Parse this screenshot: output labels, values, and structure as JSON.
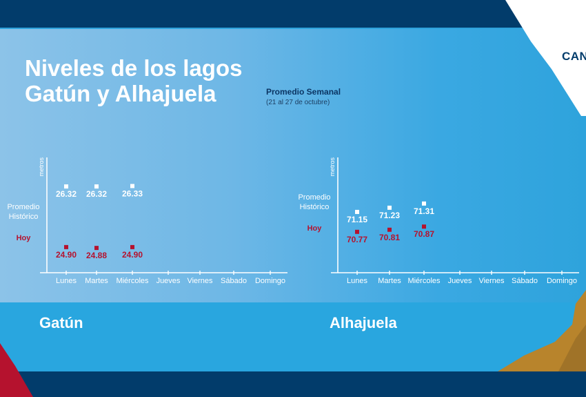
{
  "header": {
    "title_line1": "Niveles de los lagos",
    "title_line2": "Gatún y Alhajuela",
    "subtitle": "Promedio Semanal",
    "date_range": "(21 al 27 de octubre)",
    "logo_text": "CANAL"
  },
  "colors": {
    "navy": "#023c6b",
    "historic_marker": "#ffffff",
    "today_marker": "#b5122e",
    "gold_accent": "#b8842c",
    "red_accent": "#b5122e"
  },
  "chart_data": [
    {
      "type": "scatter",
      "title": "Gatún",
      "ylabel": "metros",
      "categories": [
        "Lunes",
        "Martes",
        "Miércoles",
        "Jueves",
        "Viernes",
        "Sábado",
        "Domingo"
      ],
      "series": [
        {
          "name": "Promedio Histórico",
          "values": [
            26.32,
            26.32,
            26.33
          ],
          "labels": [
            "26.32",
            "26.32",
            "26.33"
          ]
        },
        {
          "name": "Hoy",
          "values": [
            24.9,
            24.88,
            24.9
          ],
          "labels": [
            "24.90",
            "24.88",
            "24.90"
          ]
        }
      ],
      "ylim": [
        24.3,
        27.0
      ],
      "grid": false,
      "legend": "left"
    },
    {
      "type": "scatter",
      "title": "Alhajuela",
      "ylabel": "metros",
      "categories": [
        "Lunes",
        "Martes",
        "Miércoles",
        "Jueves",
        "Viernes",
        "Sábado",
        "Domingo"
      ],
      "series": [
        {
          "name": "Promedio Histórico",
          "values": [
            71.15,
            71.23,
            71.31
          ],
          "labels": [
            "71.15",
            "71.23",
            "71.31"
          ]
        },
        {
          "name": "Hoy",
          "values": [
            70.77,
            70.81,
            70.87
          ],
          "labels": [
            "70.77",
            "70.81",
            "70.87"
          ]
        }
      ],
      "ylim": [
        69.99,
        72.19
      ],
      "grid": false,
      "legend": "left"
    }
  ]
}
